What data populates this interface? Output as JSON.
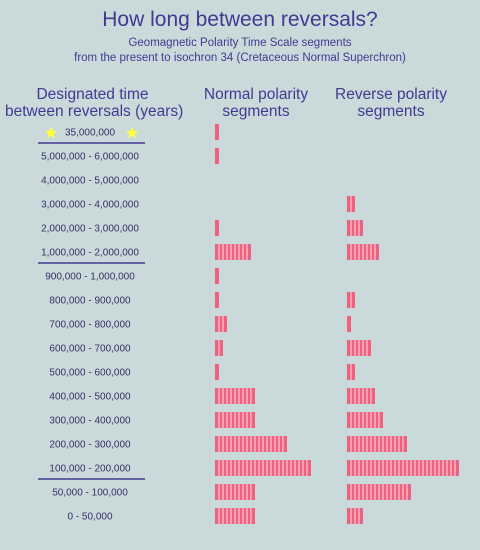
{
  "header": {
    "title": "How long between reversals?",
    "subtitle_line1": "Geomagnetic Polarity Time Scale segments",
    "subtitle_line2": "from the present to isochron 34 (Cretaceous Normal Superchron)"
  },
  "columns": {
    "time_line1": "Designated time",
    "time_line2": "between reversals (years)",
    "normal_line1": "Normal polarity",
    "normal_line2": "segments",
    "reverse_line1": "Reverse polarity",
    "reverse_line2": "segments"
  },
  "colors": {
    "bar": "#f0607f",
    "bar_divider": "#ffffff",
    "star": "#ffff40",
    "rule": "#3f3b93",
    "text": "#333366"
  },
  "chart_data": {
    "type": "bar",
    "title": "How long between reversals?",
    "categories": [
      "35,000,000",
      "5,000,000 - 6,000,000",
      "4,000,000 - 5,000,000",
      "3,000,000 - 4,000,000",
      "2,000,000 - 3,000,000",
      "1,000,000 - 2,000,000",
      "900,000 - 1,000,000",
      "800,000 - 900,000",
      "700,000 - 800,000",
      "600,000 - 700,000",
      "500,000 - 600,000",
      "400,000 - 500,000",
      "300,000 - 400,000",
      "200,000 - 300,000",
      "100,000 - 200,000",
      "50,000 - 100,000",
      "0 - 50,000"
    ],
    "series": [
      {
        "name": "Normal polarity segments",
        "values": [
          1,
          1,
          0,
          0,
          1,
          9,
          1,
          1,
          3,
          2,
          1,
          10,
          10,
          18,
          24,
          10,
          10
        ]
      },
      {
        "name": "Reverse polarity segments",
        "values": [
          0,
          0,
          0,
          2,
          4,
          8,
          0,
          2,
          1,
          6,
          2,
          7,
          9,
          15,
          28,
          16,
          4
        ]
      }
    ],
    "starred_category_index": 0,
    "separator_after_indices": [
      0,
      5,
      14
    ]
  }
}
